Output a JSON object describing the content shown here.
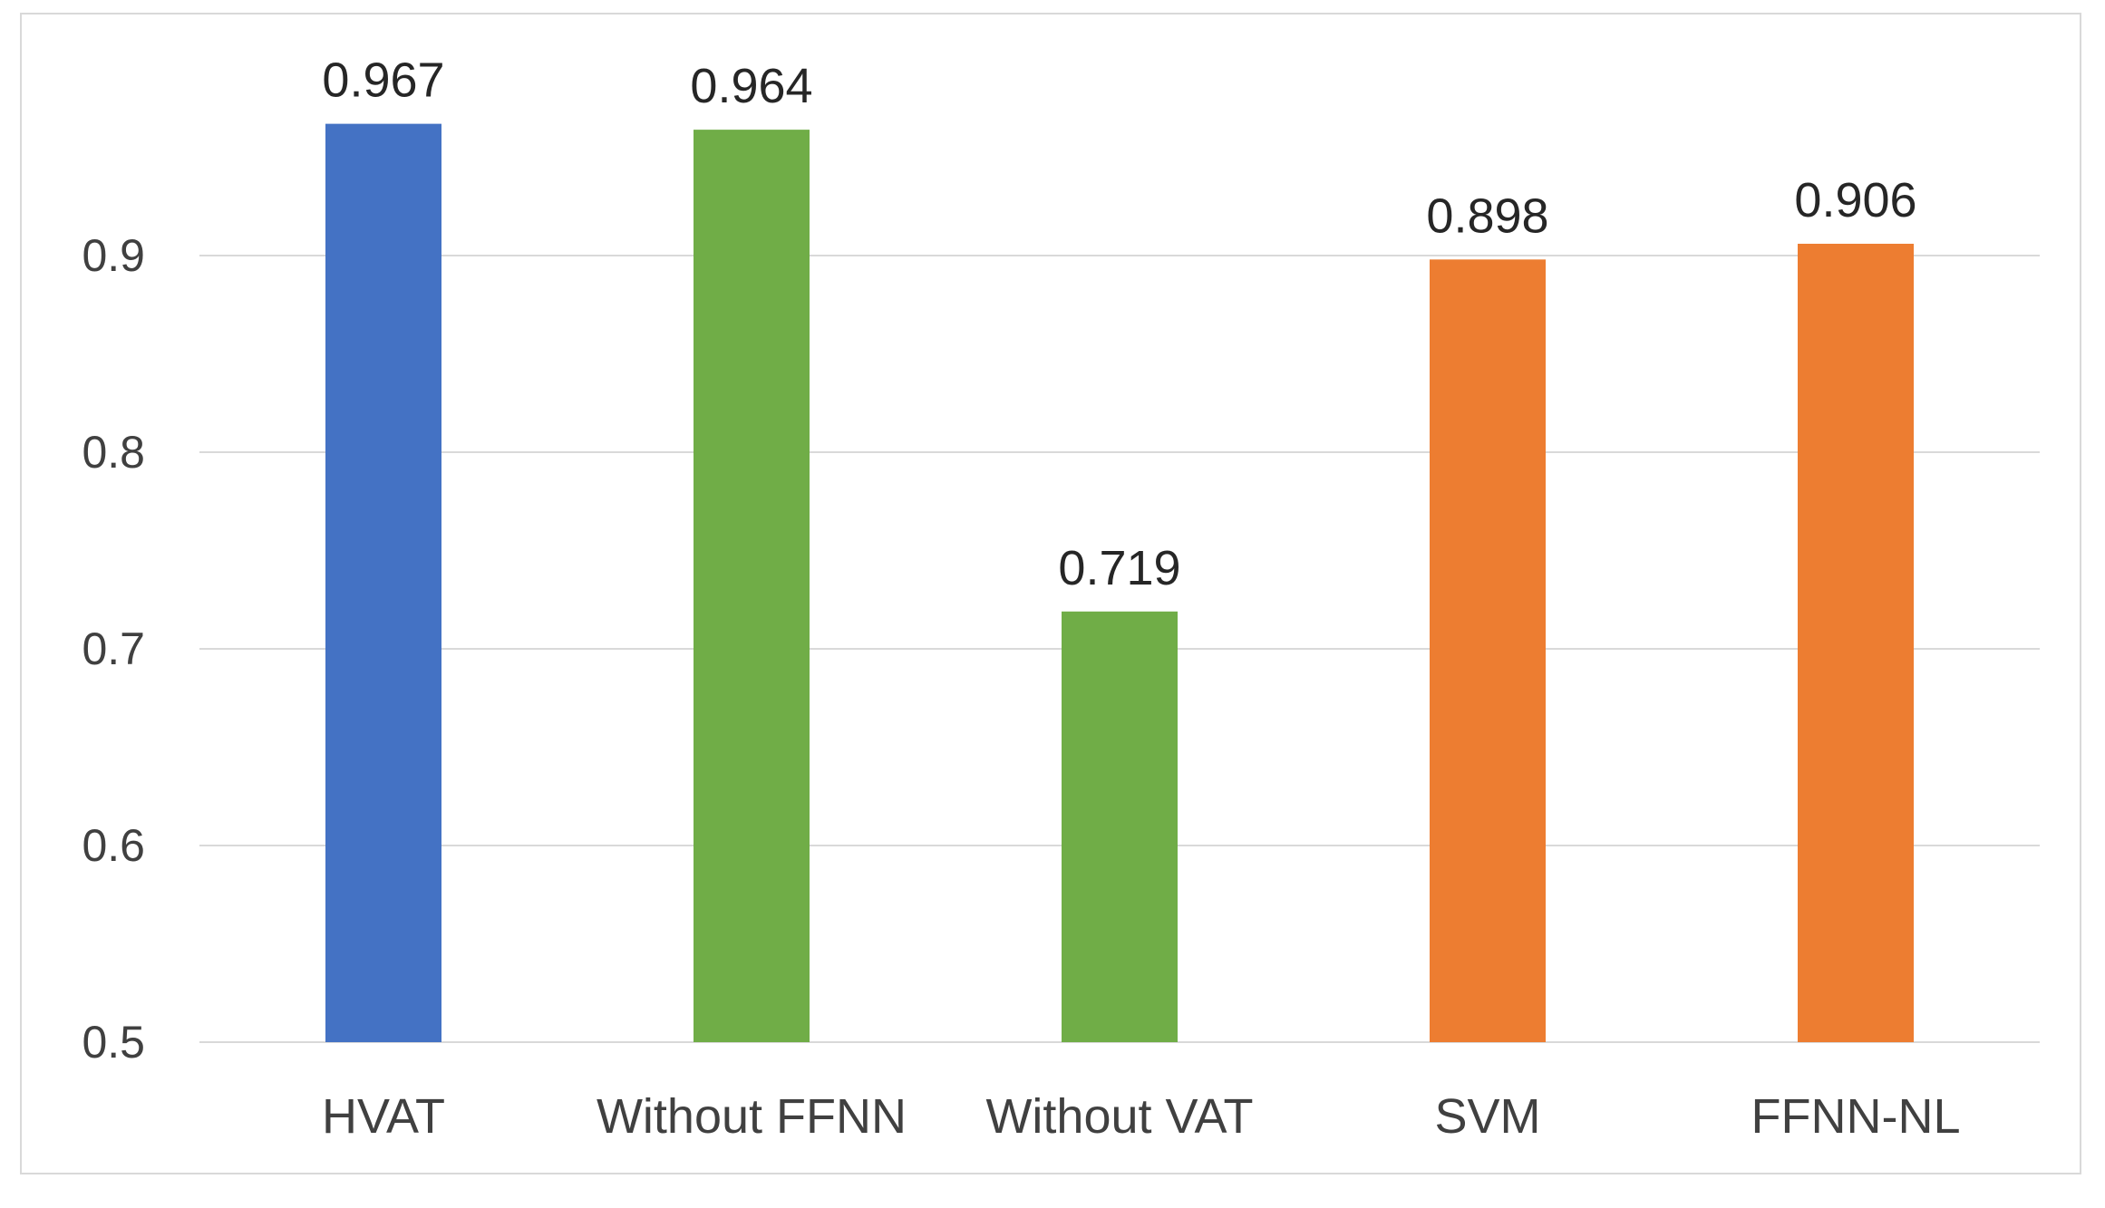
{
  "chart_data": {
    "type": "bar",
    "title": "",
    "xlabel": "",
    "ylabel": "",
    "categories": [
      "HVAT",
      "Without FFNN",
      "Without VAT",
      "SVM",
      "FFNN-NL"
    ],
    "values": [
      0.967,
      0.964,
      0.719,
      0.898,
      0.906
    ],
    "data_labels": [
      "0.967",
      "0.964",
      "0.719",
      "0.898",
      "0.906"
    ],
    "bar_colors": [
      "#4472C4",
      "#70AD47",
      "#70AD47",
      "#ED7D31",
      "#ED7D31"
    ],
    "ylim": [
      0.5,
      0.98
    ],
    "yticks": [
      0.5,
      0.6,
      0.7,
      0.8,
      0.9
    ],
    "ytick_labels": [
      "0.5",
      "0.6",
      "0.7",
      "0.8",
      "0.9"
    ],
    "grid": true,
    "legend": "none"
  }
}
